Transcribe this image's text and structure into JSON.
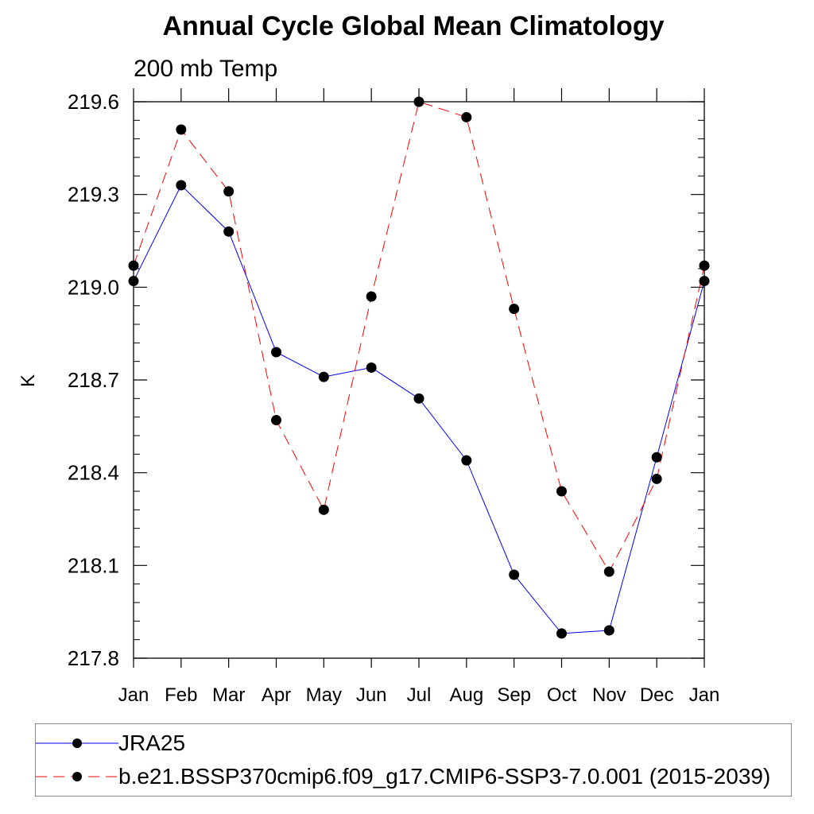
{
  "chart_data": {
    "type": "line",
    "title": "Annual Cycle Global Mean Climatology",
    "subtitle": "200 mb Temp",
    "xlabel": "",
    "ylabel": "K",
    "categories": [
      "Jan",
      "Feb",
      "Mar",
      "Apr",
      "May",
      "Jun",
      "Jul",
      "Aug",
      "Sep",
      "Oct",
      "Nov",
      "Dec",
      "Jan"
    ],
    "yticks": [
      "217.8",
      "218.1",
      "218.4",
      "218.7",
      "219.0",
      "219.3",
      "219.6"
    ],
    "ylim": [
      217.8,
      219.6
    ],
    "grid": false,
    "legend_position": "bottom",
    "series": [
      {
        "name": "JRA25",
        "color": "#0000ff",
        "style": "solid",
        "values": [
          219.02,
          219.33,
          219.18,
          218.79,
          218.71,
          218.74,
          218.64,
          218.44,
          218.07,
          217.88,
          217.89,
          218.45,
          219.02
        ]
      },
      {
        "name": "b.e21.BSSP370cmip6.f09_g17.CMIP6-SSP3-7.0.001 (2015-2039)",
        "color": "#ff0000",
        "style": "dashed",
        "values": [
          219.07,
          219.51,
          219.31,
          218.57,
          218.28,
          218.97,
          219.6,
          219.55,
          218.93,
          218.34,
          218.08,
          218.38,
          219.07
        ]
      }
    ]
  }
}
